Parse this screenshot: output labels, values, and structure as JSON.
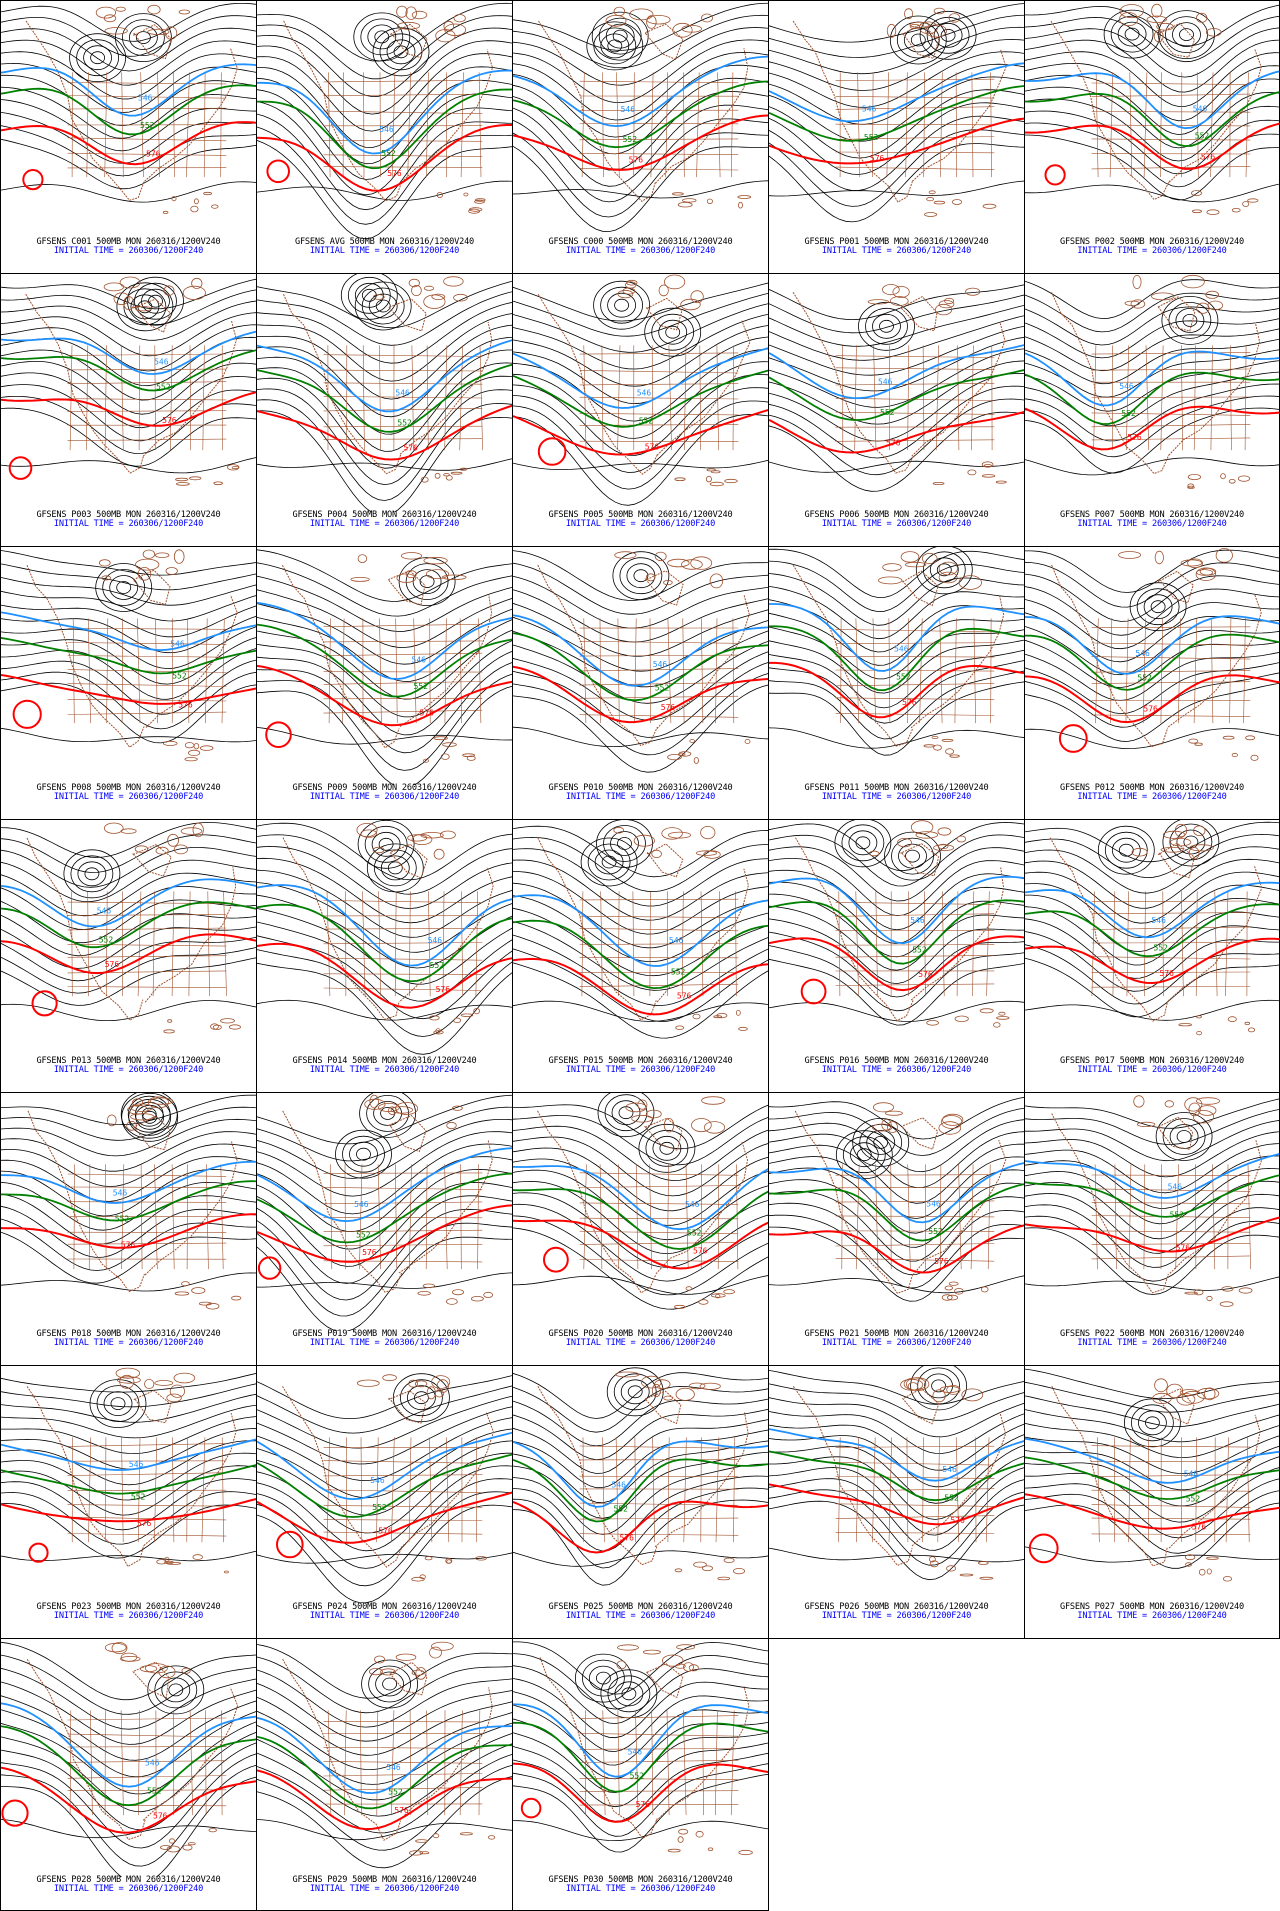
{
  "colors": {
    "background": "#ffffff",
    "contour": "#000000",
    "coast": "#a0522d",
    "c546": "#1e90ff",
    "c552": "#008000",
    "c576": "#ff0000",
    "caption_title": "#000000",
    "caption_time": "#0000ff"
  },
  "panels": [
    {
      "id": "C001",
      "title": "GFSENS C001 500MB MON 260316/1200V240",
      "time": "INITIAL TIME = 260306/1200F240",
      "labels": {
        "blue": "546",
        "green": "552",
        "red": "576"
      }
    },
    {
      "id": "AVG",
      "title": "GFSENS AVG 500MB MON 260316/1200V240",
      "time": "INITIAL TIME = 260306/1200F240",
      "labels": {
        "blue": "546",
        "green": "552",
        "red": "576"
      }
    },
    {
      "id": "C000",
      "title": "GFSENS C000 500MB MON 260316/1200V240",
      "time": "INITIAL TIME = 260306/1200F240",
      "labels": {
        "blue": "546",
        "green": "552",
        "red": "576"
      }
    },
    {
      "id": "P001",
      "title": "GFSENS P001 500MB MON 260316/1200V240",
      "time": "INITIAL TIME = 260306/1200F240",
      "labels": {
        "blue": "546",
        "green": "552",
        "red": "576"
      }
    },
    {
      "id": "P002",
      "title": "GFSENS P002 500MB MON 260316/1200V240",
      "time": "INITIAL TIME = 260306/1200F240",
      "labels": {
        "blue": "546",
        "green": "552",
        "red": "576"
      }
    },
    {
      "id": "P003",
      "title": "GFSENS P003 500MB MON 260316/1200V240",
      "time": "INITIAL TIME = 260306/1200F240",
      "labels": {
        "blue": "546",
        "green": "552",
        "red": "576"
      }
    },
    {
      "id": "P004",
      "title": "GFSENS P004 500MB MON 260316/1200V240",
      "time": "INITIAL TIME = 260306/1200F240",
      "labels": {
        "blue": "546",
        "green": "552",
        "red": "576"
      }
    },
    {
      "id": "P005",
      "title": "GFSENS P005 500MB MON 260316/1200V240",
      "time": "INITIAL TIME = 260306/1200F240",
      "labels": {
        "blue": "546",
        "green": "552",
        "red": "576"
      }
    },
    {
      "id": "P006",
      "title": "GFSENS P006 500MB MON 260316/1200V240",
      "time": "INITIAL TIME = 260306/1200F240",
      "labels": {
        "blue": "546",
        "green": "552",
        "red": "576"
      }
    },
    {
      "id": "P007",
      "title": "GFSENS P007 500MB MON 260316/1200V240",
      "time": "INITIAL TIME = 260306/1200F240",
      "labels": {
        "blue": "546",
        "green": "552",
        "red": "576"
      }
    },
    {
      "id": "P008",
      "title": "GFSENS P008 500MB MON 260316/1200V240",
      "time": "INITIAL TIME = 260306/1200F240",
      "labels": {
        "blue": "546",
        "green": "552",
        "red": "576"
      }
    },
    {
      "id": "P009",
      "title": "GFSENS P009 500MB MON 260316/1200V240",
      "time": "INITIAL TIME = 260306/1200F240",
      "labels": {
        "blue": "546",
        "green": "552",
        "red": "576"
      }
    },
    {
      "id": "P010",
      "title": "GFSENS P010 500MB MON 260316/1200V240",
      "time": "INITIAL TIME = 260306/1200F240",
      "labels": {
        "blue": "546",
        "green": "552",
        "red": "576"
      }
    },
    {
      "id": "P011",
      "title": "GFSENS P011 500MB MON 260316/1200V240",
      "time": "INITIAL TIME = 260306/1200F240",
      "labels": {
        "blue": "546",
        "green": "552",
        "red": "576"
      }
    },
    {
      "id": "P012",
      "title": "GFSENS P012 500MB MON 260316/1200V240",
      "time": "INITIAL TIME = 260306/1200F240",
      "labels": {
        "blue": "546",
        "green": "552",
        "red": "576"
      }
    },
    {
      "id": "P013",
      "title": "GFSENS P013 500MB MON 260316/1200V240",
      "time": "INITIAL TIME = 260306/1200F240",
      "labels": {
        "blue": "546",
        "green": "552",
        "red": "576"
      }
    },
    {
      "id": "P014",
      "title": "GFSENS P014 500MB MON 260316/1200V240",
      "time": "INITIAL TIME = 260306/1200F240",
      "labels": {
        "blue": "546",
        "green": "552",
        "red": "576"
      }
    },
    {
      "id": "P015",
      "title": "GFSENS P015 500MB MON 260316/1200V240",
      "time": "INITIAL TIME = 260306/1200F240",
      "labels": {
        "blue": "546",
        "green": "552",
        "red": "576"
      }
    },
    {
      "id": "P016",
      "title": "GFSENS P016 500MB MON 260316/1200V240",
      "time": "INITIAL TIME = 260306/1200F240",
      "labels": {
        "blue": "546",
        "green": "552",
        "red": "576"
      }
    },
    {
      "id": "P017",
      "title": "GFSENS P017 500MB MON 260316/1200V240",
      "time": "INITIAL TIME = 260306/1200F240",
      "labels": {
        "blue": "546",
        "green": "552",
        "red": "576"
      }
    },
    {
      "id": "P018",
      "title": "GFSENS P018 500MB MON 260316/1200V240",
      "time": "INITIAL TIME = 260306/1200F240",
      "labels": {
        "blue": "546",
        "green": "552",
        "red": "576"
      }
    },
    {
      "id": "P019",
      "title": "GFSENS P019 500MB MON 260316/1200V240",
      "time": "INITIAL TIME = 260306/1200F240",
      "labels": {
        "blue": "546",
        "green": "552",
        "red": "576"
      }
    },
    {
      "id": "P020",
      "title": "GFSENS P020 500MB MON 260316/1200V240",
      "time": "INITIAL TIME = 260306/1200F240",
      "labels": {
        "blue": "546",
        "green": "552",
        "red": "576"
      }
    },
    {
      "id": "P021",
      "title": "GFSENS P021 500MB MON 260316/1200V240",
      "time": "INITIAL TIME = 260306/1200F240",
      "labels": {
        "blue": "546",
        "green": "552",
        "red": "576"
      }
    },
    {
      "id": "P022",
      "title": "GFSENS P022 500MB MON 260316/1200V240",
      "time": "INITIAL TIME = 260306/1200F240",
      "labels": {
        "blue": "546",
        "green": "552",
        "red": "576"
      }
    },
    {
      "id": "P023",
      "title": "GFSENS P023 500MB MON 260316/1200V240",
      "time": "INITIAL TIME = 260306/1200F240",
      "labels": {
        "blue": "546",
        "green": "552",
        "red": "576"
      }
    },
    {
      "id": "P024",
      "title": "GFSENS P024 500MB MON 260316/1200V240",
      "time": "INITIAL TIME = 260306/1200F240",
      "labels": {
        "blue": "546",
        "green": "552",
        "red": "576"
      }
    },
    {
      "id": "P025",
      "title": "GFSENS P025 500MB MON 260316/1200V240",
      "time": "INITIAL TIME = 260306/1200F240",
      "labels": {
        "blue": "546",
        "green": "552",
        "red": "576"
      }
    },
    {
      "id": "P026",
      "title": "GFSENS P026 500MB MON 260316/1200V240",
      "time": "INITIAL TIME = 260306/1200F240",
      "labels": {
        "blue": "546",
        "green": "552",
        "red": "576"
      }
    },
    {
      "id": "P027",
      "title": "GFSENS P027 500MB MON 260316/1200V240",
      "time": "INITIAL TIME = 260306/1200F240",
      "labels": {
        "blue": "546",
        "green": "552",
        "red": "576"
      }
    },
    {
      "id": "P028",
      "title": "GFSENS P028 500MB MON 260316/1200V240",
      "time": "INITIAL TIME = 260306/1200F240",
      "labels": {
        "blue": "546",
        "green": "552",
        "red": "576"
      }
    },
    {
      "id": "P029",
      "title": "GFSENS P029 500MB MON 260316/1200V240",
      "time": "INITIAL TIME = 260306/1200F240",
      "labels": {
        "blue": "546",
        "green": "552",
        "red": "576"
      }
    },
    {
      "id": "P030",
      "title": "GFSENS P030 500MB MON 260316/1200V240",
      "time": "INITIAL TIME = 260306/1200F240",
      "labels": {
        "blue": "546",
        "green": "552",
        "red": "576"
      }
    }
  ]
}
